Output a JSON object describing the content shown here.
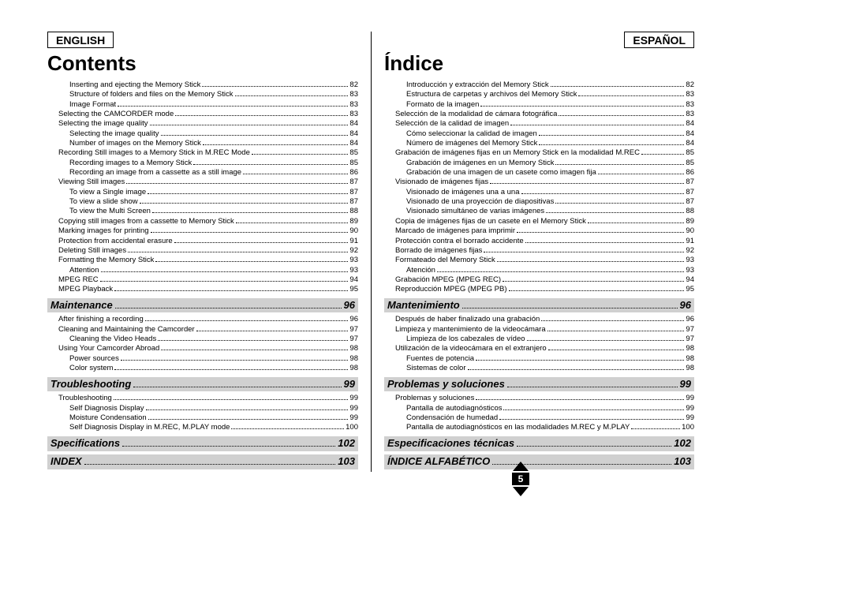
{
  "page_number": "5",
  "english": {
    "lang_label": "ENGLISH",
    "heading": "Contents",
    "entries": [
      {
        "t": "Inserting and ejecting the Memory Stick",
        "p": "82",
        "i": 2
      },
      {
        "t": "Structure of folders and files on the Memory Stick",
        "p": "83",
        "i": 2
      },
      {
        "t": "Image Format",
        "p": "83",
        "i": 2
      },
      {
        "t": "Selecting the CAMCORDER mode",
        "p": "83",
        "i": 1
      },
      {
        "t": "Selecting the image quality",
        "p": "84",
        "i": 1
      },
      {
        "t": "Selecting the image quality",
        "p": "84",
        "i": 2
      },
      {
        "t": "Number of images on the Memory Stick",
        "p": "84",
        "i": 2
      },
      {
        "t": "Recording Still images to a Memory Stick in M.REC Mode",
        "p": "85",
        "i": 1
      },
      {
        "t": "Recording images to a Memory Stick",
        "p": "85",
        "i": 2
      },
      {
        "t": "Recording an image from a cassette as a still image",
        "p": "86",
        "i": 2
      },
      {
        "t": "Viewing Still images",
        "p": "87",
        "i": 1
      },
      {
        "t": "To view a Single image",
        "p": "87",
        "i": 2
      },
      {
        "t": "To view a slide show",
        "p": "87",
        "i": 2
      },
      {
        "t": "To view the Multi Screen",
        "p": "88",
        "i": 2
      },
      {
        "t": "Copying still images from a cassette to Memory Stick",
        "p": "89",
        "i": 1
      },
      {
        "t": "Marking images for printing",
        "p": "90",
        "i": 1
      },
      {
        "t": "Protection from accidental erasure",
        "p": "91",
        "i": 1
      },
      {
        "t": "Deleting Still images",
        "p": "92",
        "i": 1
      },
      {
        "t": "Formatting the Memory Stick",
        "p": "93",
        "i": 1
      },
      {
        "t": "Attention",
        "p": "93",
        "i": 2
      },
      {
        "t": "MPEG REC",
        "p": "94",
        "i": 1
      },
      {
        "t": "MPEG Playback",
        "p": "95",
        "i": 1
      }
    ],
    "sections": [
      {
        "title": "Maintenance",
        "page": "96",
        "entries": [
          {
            "t": "After finishing a recording",
            "p": "96",
            "i": 1
          },
          {
            "t": "Cleaning and Maintaining the Camcorder",
            "p": "97",
            "i": 1
          },
          {
            "t": "Cleaning the Video Heads",
            "p": "97",
            "i": 2
          },
          {
            "t": "Using Your Camcorder Abroad",
            "p": "98",
            "i": 1
          },
          {
            "t": "Power sources",
            "p": "98",
            "i": 2
          },
          {
            "t": "Color system",
            "p": "98",
            "i": 2
          }
        ]
      },
      {
        "title": "Troubleshooting",
        "page": "99",
        "entries": [
          {
            "t": "Troubleshooting",
            "p": "99",
            "i": 1
          },
          {
            "t": "Self Diagnosis Display",
            "p": "99",
            "i": 2
          },
          {
            "t": "Moisture Condensation",
            "p": "99",
            "i": 2
          },
          {
            "t": "Self Diagnosis Display in M.REC, M.PLAY mode",
            "p": "100",
            "i": 2
          }
        ]
      },
      {
        "title": "Specifications",
        "page": "102",
        "entries": []
      },
      {
        "title": "INDEX",
        "page": "103",
        "entries": []
      }
    ]
  },
  "spanish": {
    "lang_label": "ESPAÑOL",
    "heading": "Índice",
    "entries": [
      {
        "t": "Introducción y extracción del Memory Stick",
        "p": "82",
        "i": 2
      },
      {
        "t": "Estructura de carpetas y archivos del Memory Stick",
        "p": "83",
        "i": 2
      },
      {
        "t": "Formato de la imagen",
        "p": "83",
        "i": 2
      },
      {
        "t": "Selección de la modalidad de cámara fotográfica",
        "p": "83",
        "i": 1
      },
      {
        "t": "Selección de la calidad de imagen",
        "p": "84",
        "i": 1
      },
      {
        "t": "Cómo seleccionar la calidad de imagen",
        "p": "84",
        "i": 2
      },
      {
        "t": "Número de imágenes del Memory Stick",
        "p": "84",
        "i": 2
      },
      {
        "t": "Grabación de imágenes fijas en un Memory Stick en la modalidad M.REC",
        "p": "85",
        "i": 1
      },
      {
        "t": "Grabación de imágenes en un Memory Stick",
        "p": "85",
        "i": 2
      },
      {
        "t": "Grabación de una imagen de un casete como imagen fija",
        "p": "86",
        "i": 2
      },
      {
        "t": "Visionado de imágenes fijas",
        "p": "87",
        "i": 1
      },
      {
        "t": "Visionado de imágenes una a una",
        "p": "87",
        "i": 2
      },
      {
        "t": "Visionado de una proyección de diapositivas",
        "p": "87",
        "i": 2
      },
      {
        "t": "Visionado simultáneo de varias imágenes",
        "p": "88",
        "i": 2
      },
      {
        "t": "Copia de imágenes fijas de un casete en el Memory Stick",
        "p": "89",
        "i": 1
      },
      {
        "t": "Marcado de imágenes para imprimir",
        "p": "90",
        "i": 1
      },
      {
        "t": "Protección contra el borrado accidente",
        "p": "91",
        "i": 1
      },
      {
        "t": "Borrado de imágenes fijas",
        "p": "92",
        "i": 1
      },
      {
        "t": "Formateado del Memory Stick",
        "p": "93",
        "i": 1
      },
      {
        "t": "Atención",
        "p": "93",
        "i": 2
      },
      {
        "t": "Grabación MPEG (MPEG REC)",
        "p": "94",
        "i": 1
      },
      {
        "t": "Reproducción MPEG (MPEG PB)",
        "p": "95",
        "i": 1
      }
    ],
    "sections": [
      {
        "title": "Mantenimiento",
        "page": "96",
        "entries": [
          {
            "t": "Después de haber finalizado una grabación",
            "p": "96",
            "i": 1
          },
          {
            "t": "Limpieza y mantenimiento de la videocámara",
            "p": "97",
            "i": 1
          },
          {
            "t": "Limpieza de los cabezales de vídeo",
            "p": "97",
            "i": 2
          },
          {
            "t": "Utilización de la videocámara en el extranjero",
            "p": "98",
            "i": 1
          },
          {
            "t": "Fuentes de potencia",
            "p": "98",
            "i": 2
          },
          {
            "t": "Sistemas de color",
            "p": "98",
            "i": 2
          }
        ]
      },
      {
        "title": "Problemas y soluciones",
        "page": "99",
        "entries": [
          {
            "t": "Problemas y soluciones",
            "p": "99",
            "i": 1
          },
          {
            "t": "Pantalla de autodiagnósticos",
            "p": "99",
            "i": 2
          },
          {
            "t": "Condensación de humedad",
            "p": "99",
            "i": 2
          },
          {
            "t": "Pantalla de autodiagnósticos en las modalidades M.REC y M.PLAY",
            "p": "100",
            "i": 2
          }
        ]
      },
      {
        "title": "Especificaciones técnicas",
        "page": "102",
        "entries": []
      },
      {
        "title": "ÍNDICE ALFABÉTICO",
        "page": "103",
        "entries": []
      }
    ]
  }
}
